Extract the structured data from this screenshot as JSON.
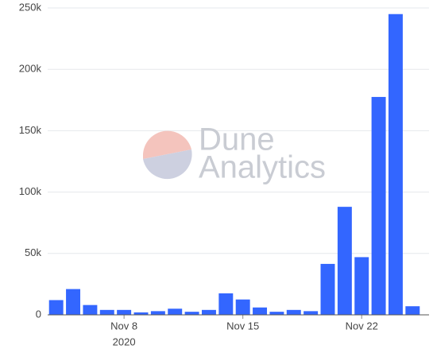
{
  "chart_data": {
    "type": "bar",
    "x": [
      "2020-11-04",
      "2020-11-05",
      "2020-11-06",
      "2020-11-07",
      "2020-11-08",
      "2020-11-09",
      "2020-11-10",
      "2020-11-11",
      "2020-11-12",
      "2020-11-13",
      "2020-11-14",
      "2020-11-15",
      "2020-11-16",
      "2020-11-17",
      "2020-11-18",
      "2020-11-19",
      "2020-11-20",
      "2020-11-21",
      "2020-11-22",
      "2020-11-23",
      "2020-11-24",
      "2020-11-25"
    ],
    "values": [
      12000,
      21000,
      8000,
      4000,
      4000,
      2000,
      3000,
      5000,
      2500,
      4000,
      17500,
      12500,
      6000,
      2500,
      4000,
      3000,
      41500,
      88000,
      47000,
      177500,
      245000,
      7000
    ],
    "color": "#3366ff",
    "xlim": [
      "2020-11-03T12:00:00Z",
      "2020-11-25T12:00:00Z"
    ],
    "xticks": [
      {
        "value": "2020-11-08",
        "label": "Nov 8"
      },
      {
        "value": "2020-11-15",
        "label": "Nov 15"
      },
      {
        "value": "2020-11-22",
        "label": "Nov 22"
      }
    ],
    "x_year": "2020",
    "ylim": [
      0,
      250000
    ],
    "yticks": [
      {
        "value": 0,
        "label": "0"
      },
      {
        "value": 50000,
        "label": "50k"
      },
      {
        "value": 100000,
        "label": "100k"
      },
      {
        "value": 150000,
        "label": "150k"
      },
      {
        "value": 200000,
        "label": "200k"
      },
      {
        "value": 250000,
        "label": "250k"
      }
    ],
    "grid": true,
    "watermark": [
      "Dune",
      "Analytics"
    ]
  }
}
